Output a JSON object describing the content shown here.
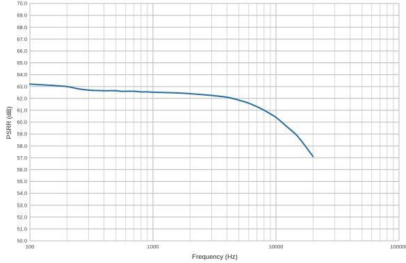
{
  "chart_data": {
    "type": "line",
    "title": "",
    "xlabel": "Frequency (Hz)",
    "ylabel": "PSRR (dB)",
    "x_scale": "log",
    "xlim": [
      100,
      100000
    ],
    "ylim": [
      50.0,
      70.0
    ],
    "x_ticks": [
      "100",
      "1000",
      "10000",
      "100000"
    ],
    "y_ticks": [
      "50.0",
      "51.0",
      "52.0",
      "53.0",
      "54.0",
      "55.0",
      "56.0",
      "57.0",
      "58.0",
      "59.0",
      "60.0",
      "61.0",
      "62.0",
      "63.0",
      "64.0",
      "65.0",
      "66.0",
      "67.0",
      "68.0",
      "69.0",
      "70.0"
    ],
    "grid": true,
    "legend": "none",
    "colors": {
      "line": "#1f6fa6",
      "major_grid": "#b8b8b8",
      "minor_grid": "#d6d6d6"
    },
    "series": [
      {
        "x": [
          100,
          150,
          200,
          250,
          300,
          400,
          500,
          550,
          600,
          700,
          800,
          900,
          1000,
          1500,
          2000,
          3000,
          4000,
          5000,
          6000,
          7000,
          8000,
          10000,
          12000,
          15000,
          20000
        ],
        "y": [
          63.2,
          63.1,
          63.0,
          62.8,
          62.7,
          62.65,
          62.65,
          62.6,
          62.6,
          62.6,
          62.55,
          62.55,
          62.52,
          62.47,
          62.4,
          62.25,
          62.1,
          61.85,
          61.6,
          61.3,
          61.0,
          60.4,
          59.7,
          58.8,
          57.1
        ]
      }
    ]
  }
}
